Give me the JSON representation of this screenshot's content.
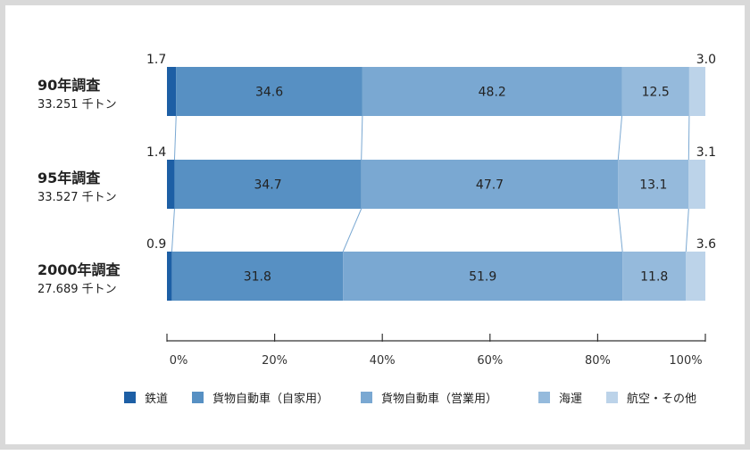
{
  "chart_data": {
    "type": "bar",
    "orientation": "horizontal",
    "stacked": true,
    "categories": [
      {
        "title": "90年調査",
        "subtitle": "33.251 千トン"
      },
      {
        "title": "95年調査",
        "subtitle": "33.527 千トン"
      },
      {
        "title": "2000年調査",
        "subtitle": "27.689 千トン"
      }
    ],
    "series": [
      {
        "name": "鉄道",
        "color": "#1d5fa5",
        "values": [
          1.7,
          1.4,
          0.9
        ],
        "label_outside": true
      },
      {
        "name": "貨物自動車（自家用）",
        "color": "#5790c3",
        "values": [
          34.6,
          34.7,
          31.8
        ]
      },
      {
        "name": "貨物自動車（営業用）",
        "color": "#7aa8d2",
        "values": [
          48.2,
          47.7,
          51.9
        ]
      },
      {
        "name": "海運",
        "color": "#95badc",
        "values": [
          12.5,
          13.1,
          11.8
        ]
      },
      {
        "name": "航空・その他",
        "color": "#bcd3e9",
        "values": [
          3.0,
          3.1,
          3.6
        ],
        "label_outside": true
      }
    ],
    "xlim": [
      0,
      100
    ],
    "ticks": [
      "0%",
      "20%",
      "40%",
      "60%",
      "80%",
      "100%"
    ],
    "legend_position": "bottom",
    "grid": false
  }
}
